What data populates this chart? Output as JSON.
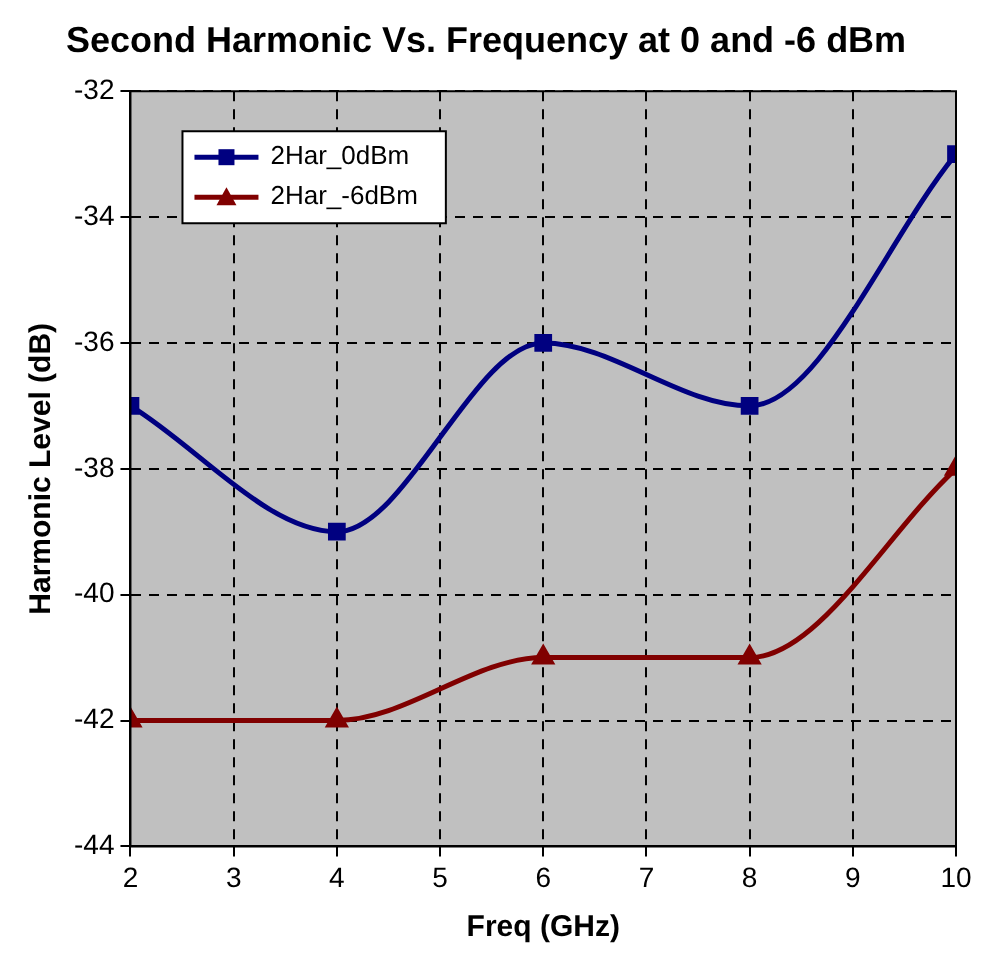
{
  "chart_data": {
    "type": "line",
    "title": "Second Harmonic Vs. Frequency at 0 and -6 dBm",
    "xlabel": "Freq (GHz)",
    "ylabel": "Harmonic Level (dB)",
    "x": [
      2,
      4,
      6,
      8,
      10
    ],
    "series": [
      {
        "name": "2Har_0dBm",
        "color": "#000080",
        "marker": "square",
        "values": [
          -37,
          -39,
          -36,
          -37,
          -33
        ]
      },
      {
        "name": "2Har_-6dBm",
        "color": "#800000",
        "marker": "triangle",
        "values": [
          -42,
          -42,
          -41,
          -41,
          -38
        ]
      }
    ],
    "xlim": [
      2,
      10
    ],
    "xticks": [
      2,
      3,
      4,
      5,
      6,
      7,
      8,
      9,
      10
    ],
    "ylim": [
      -44,
      -32
    ],
    "yticks": [
      -44,
      -42,
      -40,
      -38,
      -36,
      -34,
      -32
    ],
    "grid": true,
    "legend": "top left",
    "line_style": "solid"
  }
}
